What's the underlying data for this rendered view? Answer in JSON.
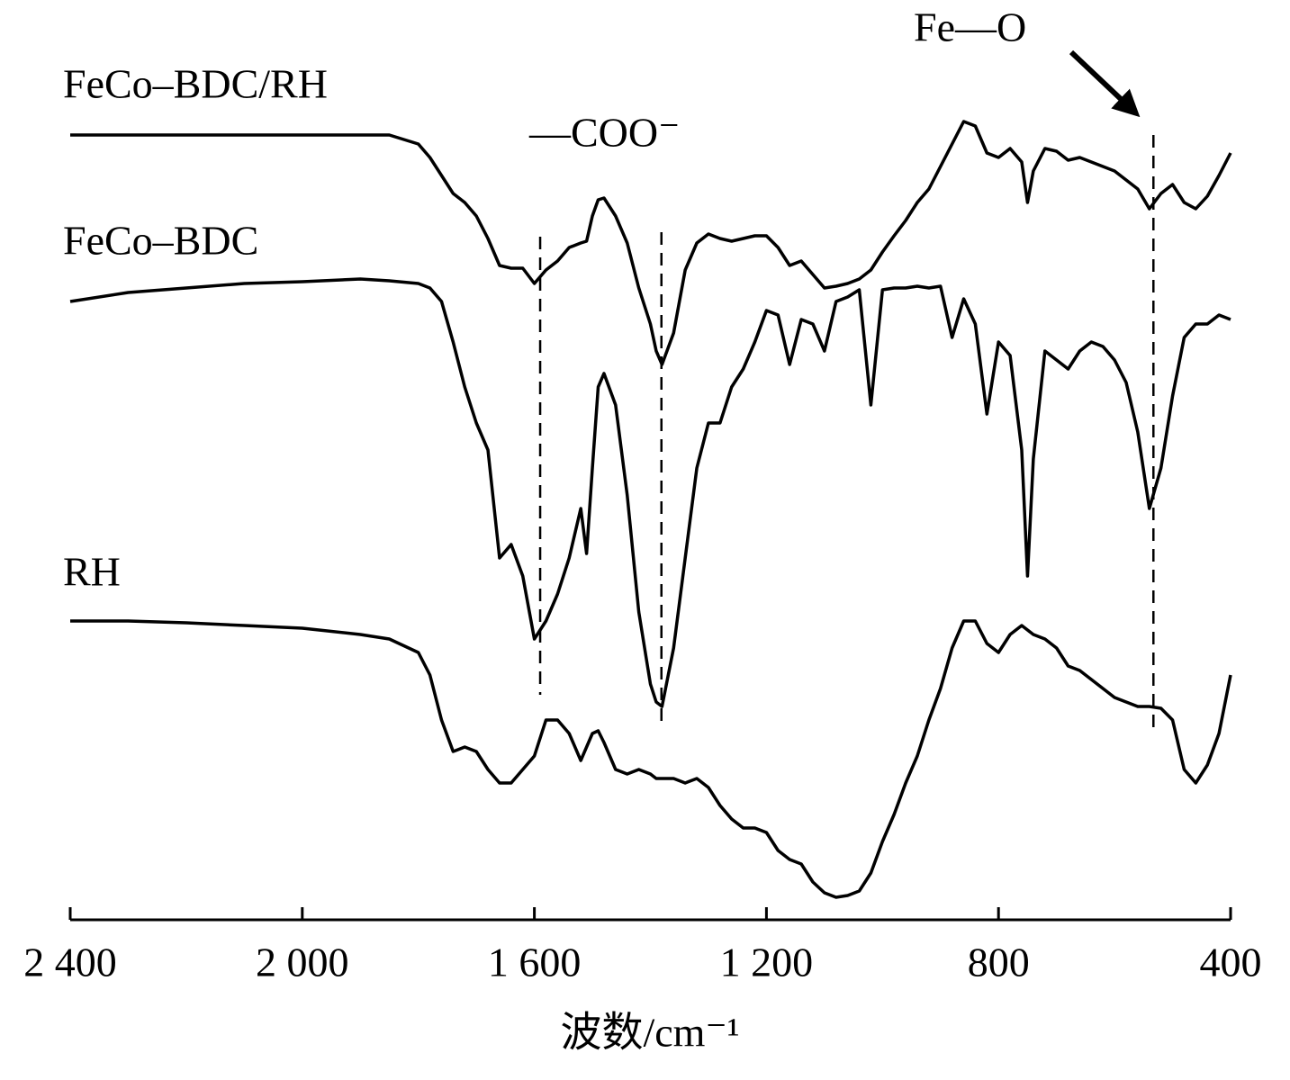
{
  "chart_data": {
    "type": "line",
    "x_label": "波数/cm⁻¹",
    "xlim": [
      2400,
      400
    ],
    "ylim": [
      0,
      100
    ],
    "xticks": [
      {
        "value": 2400,
        "label": "2 400"
      },
      {
        "value": 2000,
        "label": "2 000"
      },
      {
        "value": 1600,
        "label": "1 600"
      },
      {
        "value": 1200,
        "label": "1 200"
      },
      800,
      400
    ],
    "grid": false,
    "annotations": [
      "—COO⁻",
      "Fe—O"
    ],
    "reference_lines": [
      1590,
      1381,
      533
    ],
    "x": [
      2400,
      2300,
      2200,
      2100,
      2000,
      1900,
      1850,
      1800,
      1780,
      1760,
      1740,
      1720,
      1700,
      1680,
      1660,
      1640,
      1620,
      1600,
      1580,
      1560,
      1540,
      1520,
      1510,
      1500,
      1490,
      1480,
      1460,
      1440,
      1420,
      1400,
      1390,
      1380,
      1360,
      1340,
      1320,
      1300,
      1280,
      1260,
      1240,
      1220,
      1200,
      1180,
      1160,
      1140,
      1120,
      1100,
      1080,
      1060,
      1040,
      1020,
      1000,
      980,
      960,
      940,
      920,
      900,
      880,
      860,
      840,
      820,
      800,
      780,
      760,
      750,
      740,
      720,
      700,
      680,
      660,
      640,
      620,
      600,
      580,
      560,
      540,
      520,
      500,
      480,
      460,
      440,
      420,
      400
    ],
    "series": [
      {
        "name": "FeCo–BDC/RH",
        "color": "#000000",
        "values": [
          87.2,
          87.2,
          87.2,
          87.2,
          87.2,
          87.2,
          87.2,
          86.2,
          84.7,
          82.7,
          80.7,
          79.7,
          78.2,
          75.7,
          72.7,
          72.4,
          72.4,
          70.7,
          72.2,
          73.2,
          74.7,
          75.2,
          75.4,
          78.2,
          80,
          80.2,
          78.2,
          75.2,
          70.2,
          66.2,
          63.2,
          61.7,
          65.2,
          72.2,
          75.2,
          76.2,
          75.7,
          75.4,
          75.7,
          76,
          76,
          74.7,
          72.7,
          73.2,
          71.7,
          70.2,
          70.4,
          70.7,
          71.2,
          72.2,
          74.2,
          76,
          77.7,
          79.7,
          81.2,
          83.7,
          86.2,
          88.7,
          88.2,
          85.2,
          84.7,
          85.7,
          84.2,
          79.7,
          83.2,
          85.7,
          85.4,
          84.4,
          84.7,
          84.2,
          83.7,
          83.2,
          82.2,
          81.2,
          79,
          80.7,
          81.7,
          79.7,
          79,
          80.4,
          82.7,
          85.2
        ]
      },
      {
        "name": "FeCo–BDC",
        "color": "#000000",
        "values": [
          68.7,
          69.7,
          70.2,
          70.7,
          70.9,
          71.2,
          71,
          70.7,
          70.2,
          68.7,
          64.2,
          59.2,
          55.2,
          52.2,
          40.2,
          41.7,
          38.2,
          31.2,
          33.2,
          36.2,
          40.2,
          45.7,
          40.7,
          50.2,
          59.2,
          60.7,
          57.2,
          47.2,
          34.2,
          26.2,
          24.2,
          23.7,
          30.2,
          40.2,
          50.2,
          55.2,
          55.2,
          59.2,
          61.2,
          64.2,
          67.7,
          67.2,
          61.7,
          66.7,
          66.2,
          63.2,
          68.7,
          69.2,
          70,
          57.2,
          70,
          70.2,
          70.2,
          70.4,
          70.2,
          70.4,
          64.7,
          69,
          66.2,
          56.2,
          64.2,
          62.7,
          52.2,
          38.2,
          51.2,
          63.2,
          62.2,
          61.2,
          63.2,
          64.2,
          63.7,
          62.2,
          59.7,
          54.2,
          45.7,
          50.2,
          58.2,
          64.7,
          66.2,
          66.2,
          67.2,
          66.7
        ]
      },
      {
        "name": "RH",
        "color": "#000000",
        "values": [
          33.2,
          33.2,
          33,
          32.7,
          32.4,
          31.7,
          31.2,
          29.7,
          27.2,
          22.2,
          18.7,
          19.2,
          18.7,
          16.7,
          15.2,
          15.2,
          16.7,
          18.2,
          22.2,
          22.2,
          20.7,
          17.7,
          19.2,
          20.7,
          21,
          19.7,
          16.7,
          16.2,
          16.7,
          16.2,
          15.7,
          15.7,
          15.7,
          15.2,
          15.7,
          14.7,
          12.7,
          11.2,
          10.2,
          10.2,
          9.7,
          7.7,
          6.7,
          6.2,
          4.2,
          3,
          2.5,
          2.7,
          3.2,
          5.2,
          8.7,
          11.7,
          15.2,
          18.2,
          22.2,
          25.7,
          30.2,
          33.2,
          33.2,
          30.7,
          29.7,
          31.7,
          32.7,
          32.2,
          31.7,
          31.2,
          30.2,
          28.2,
          27.7,
          26.7,
          25.7,
          24.7,
          24.2,
          23.7,
          23.7,
          23.5,
          22.2,
          16.7,
          15.2,
          17.2,
          20.7,
          27.2
        ]
      }
    ]
  }
}
